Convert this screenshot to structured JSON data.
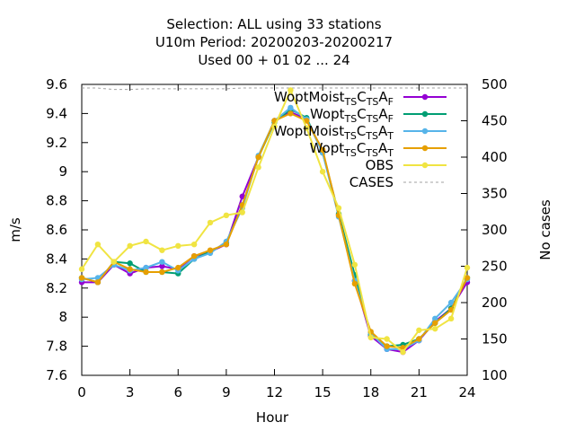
{
  "chart_data": {
    "type": "line",
    "title_lines": [
      "Selection: ALL using    33 stations",
      "U10m   Period: 20200203-20200217",
      "Used  00 + 01 02 ... 24"
    ],
    "xlabel": "Hour",
    "ylabel": "m/s",
    "y2label": "No cases",
    "xlim": [
      0,
      24
    ],
    "ylim": [
      7.6,
      9.6
    ],
    "y2lim": [
      100,
      500
    ],
    "xticks": [
      "0",
      "3",
      "6",
      "9",
      "12",
      "15",
      "18",
      "21",
      "24"
    ],
    "yticks": [
      "7.6",
      "7.8",
      "8",
      "8.2",
      "8.4",
      "8.6",
      "8.8",
      "9",
      "9.2",
      "9.4",
      "9.6"
    ],
    "y2ticks": [
      "100",
      "150",
      "200",
      "250",
      "300",
      "350",
      "400",
      "450",
      "500"
    ],
    "legend_position": "top-right",
    "grid": false,
    "x": [
      0,
      1,
      2,
      3,
      4,
      5,
      6,
      7,
      8,
      9,
      10,
      11,
      12,
      13,
      14,
      15,
      16,
      17,
      18,
      19,
      20,
      21,
      22,
      23,
      24
    ],
    "series": [
      {
        "name": "WoptMoist",
        "legend_sub": [
          "TS",
          "C",
          "TS",
          "A",
          "F"
        ],
        "color": "#9400d3",
        "marker": "circle",
        "values": [
          8.24,
          8.24,
          8.36,
          8.3,
          8.34,
          8.35,
          8.33,
          8.42,
          8.45,
          8.5,
          8.83,
          9.1,
          9.35,
          9.41,
          9.36,
          9.14,
          8.7,
          8.25,
          7.87,
          7.78,
          7.76,
          7.84,
          7.97,
          8.06,
          8.24
        ]
      },
      {
        "name": "Wopt",
        "legend_sub": [
          "TS",
          "C",
          "TS",
          "A",
          "F"
        ],
        "color": "#009e73",
        "marker": "circle",
        "values": [
          8.27,
          8.24,
          8.38,
          8.37,
          8.31,
          8.31,
          8.3,
          8.4,
          8.45,
          8.51,
          8.77,
          9.1,
          9.34,
          9.43,
          9.37,
          9.13,
          8.71,
          8.29,
          7.88,
          7.8,
          7.81,
          7.85,
          7.96,
          8.06,
          8.27
        ]
      },
      {
        "name": "WoptMoist",
        "legend_sub": [
          "TS",
          "C",
          "TS",
          "A",
          "T"
        ],
        "color": "#56b4e9",
        "marker": "circle",
        "values": [
          8.26,
          8.27,
          8.36,
          8.32,
          8.34,
          8.38,
          8.32,
          8.4,
          8.44,
          8.52,
          8.75,
          9.11,
          9.35,
          9.44,
          9.36,
          9.13,
          8.69,
          8.25,
          7.89,
          7.78,
          7.78,
          7.84,
          7.99,
          8.1,
          8.26
        ]
      },
      {
        "name": "Wopt",
        "legend_sub": [
          "TS",
          "C",
          "TS",
          "A",
          "T"
        ],
        "color": "#e69f00",
        "marker": "circle",
        "values": [
          8.27,
          8.24,
          8.38,
          8.33,
          8.31,
          8.31,
          8.34,
          8.42,
          8.46,
          8.5,
          8.77,
          9.1,
          9.35,
          9.4,
          9.35,
          9.15,
          8.7,
          8.23,
          7.9,
          7.8,
          7.79,
          7.85,
          7.96,
          8.05,
          8.27
        ]
      },
      {
        "name": "OBS",
        "color": "#f0e442",
        "marker": "circle",
        "values": [
          8.33,
          8.5,
          8.38,
          8.49,
          8.52,
          8.46,
          8.49,
          8.5,
          8.65,
          8.7,
          8.72,
          9.03,
          9.31,
          9.56,
          9.3,
          9.0,
          8.75,
          8.36,
          7.86,
          7.85,
          7.76,
          7.91,
          7.92,
          7.99,
          8.34
        ]
      }
    ],
    "cases": {
      "name": "CASES",
      "color": "#a0a0a0",
      "values": [
        495,
        495,
        493,
        493,
        494,
        494,
        494,
        494,
        494,
        494,
        495,
        495,
        495,
        495,
        495,
        495,
        495,
        495,
        495,
        495,
        495,
        495,
        495,
        495,
        495
      ]
    }
  }
}
